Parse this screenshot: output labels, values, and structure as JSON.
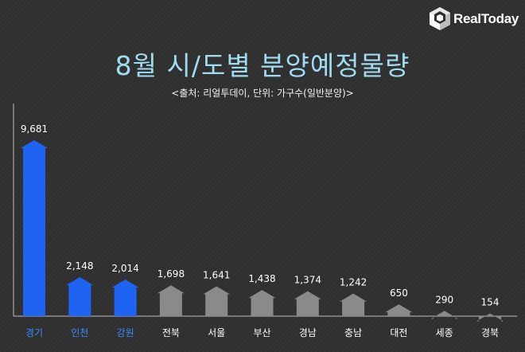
{
  "brand": {
    "name": "RealToday",
    "logo_icon": "house-cube-logo-icon"
  },
  "chart_data": {
    "type": "bar",
    "title": "8월 시/도별 분양예정물량",
    "subtitle": "<출처: 리얼투데이, 단위: 가구수(일반분양)>",
    "categories": [
      "경기",
      "인천",
      "강원",
      "전북",
      "서울",
      "부산",
      "경남",
      "충남",
      "대전",
      "세종",
      "경북"
    ],
    "values": [
      9681,
      2148,
      2014,
      1698,
      1641,
      1438,
      1374,
      1242,
      650,
      290,
      154
    ],
    "value_labels": [
      "9,681",
      "2,148",
      "2,014",
      "1,698",
      "1,641",
      "1,438",
      "1,374",
      "1,242",
      "650",
      "290",
      "154"
    ],
    "highlighted": [
      true,
      true,
      true,
      false,
      false,
      false,
      false,
      false,
      false,
      false,
      false
    ],
    "ylim": [
      0,
      10500
    ],
    "xlabel": "",
    "ylabel": "",
    "grid": false,
    "colors": {
      "highlight": "#1f63f2",
      "normal": "#8a8a8a",
      "highlight_label": "#3a8cff",
      "normal_label": "#ffffff",
      "axis": "#bdbdbd"
    }
  }
}
